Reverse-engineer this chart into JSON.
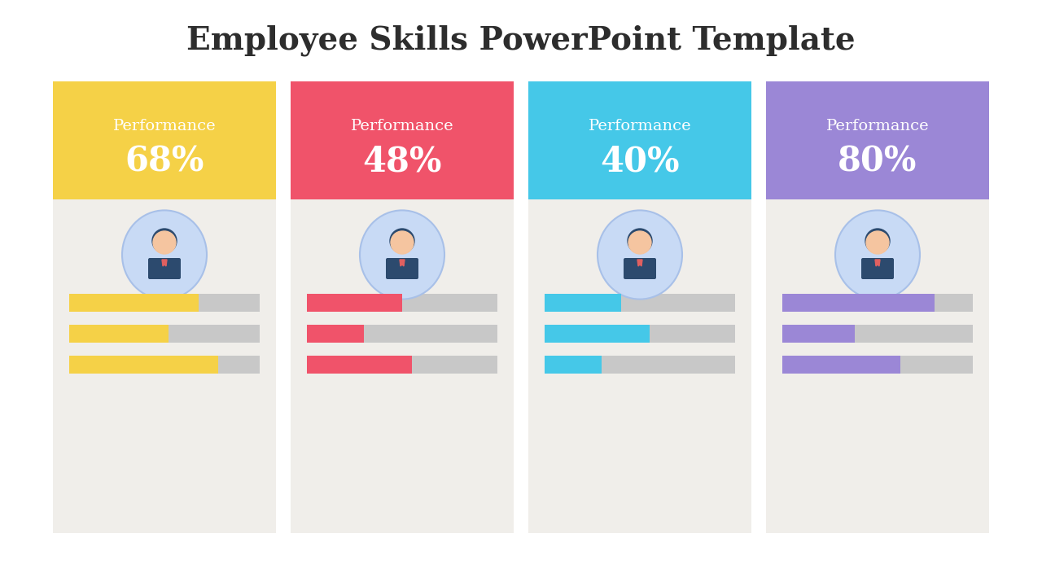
{
  "title": "Employee Skills PowerPoint Template",
  "title_fontsize": 28,
  "title_color": "#2d2d2d",
  "background_color": "#ffffff",
  "cards": [
    {
      "label": "Performance",
      "percent": "68%",
      "value": 68,
      "header_color": "#f5d147",
      "bar_color": "#f5d147",
      "bars": [
        0.68,
        0.52,
        0.78
      ]
    },
    {
      "label": "Performance",
      "percent": "48%",
      "value": 48,
      "header_color": "#f0536a",
      "bar_color": "#f0536a",
      "bars": [
        0.5,
        0.3,
        0.55
      ]
    },
    {
      "label": "Performance",
      "percent": "40%",
      "value": 40,
      "header_color": "#45c8e8",
      "bar_color": "#45c8e8",
      "bars": [
        0.4,
        0.55,
        0.3
      ]
    },
    {
      "label": "Performance",
      "percent": "80%",
      "value": 80,
      "header_color": "#9b87d6",
      "bar_color": "#9b87d6",
      "bars": [
        0.8,
        0.38,
        0.62
      ]
    }
  ],
  "card_bg_color": "#f0eeea",
  "bar_bg_color": "#c8c8c8",
  "text_color_white": "#ffffff",
  "text_color_dark": "#2d2d2d"
}
